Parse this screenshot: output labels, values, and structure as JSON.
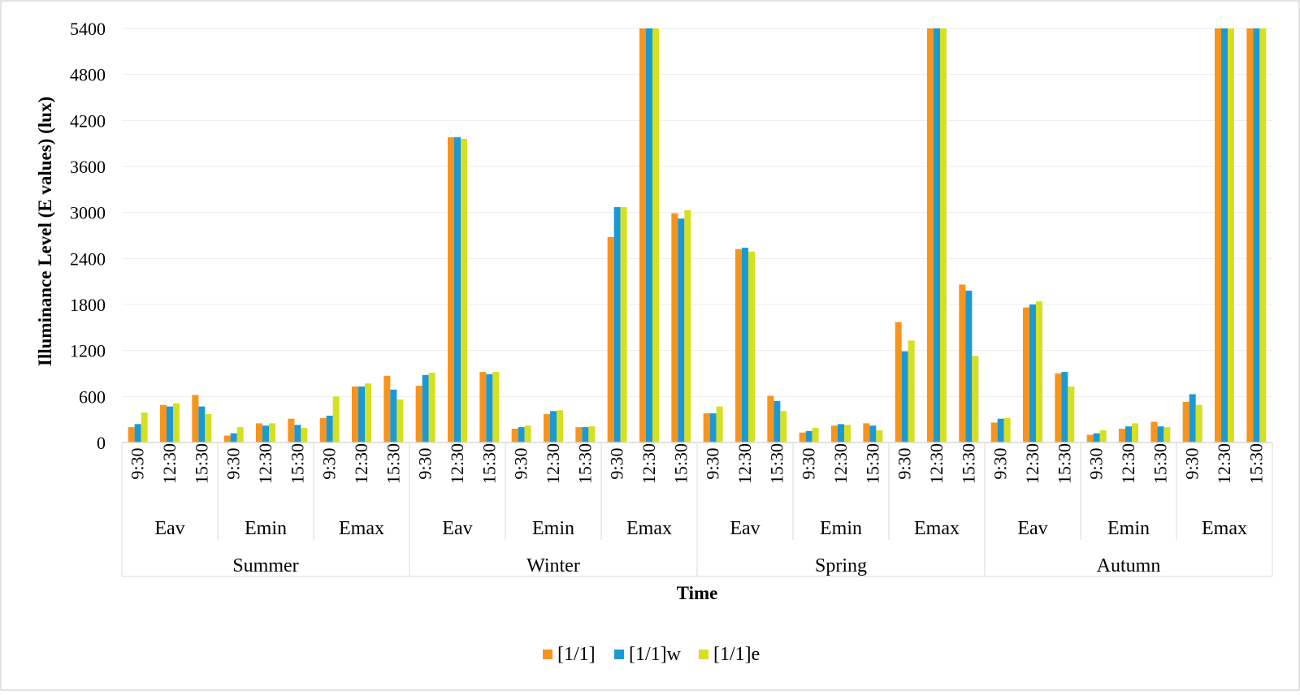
{
  "chart_data": {
    "type": "bar",
    "title": "",
    "xlabel": "Time",
    "ylabel": "Illuminance Level (E values) (lux)",
    "ylim": [
      0,
      5400
    ],
    "yticks": [
      0,
      600,
      1200,
      1800,
      2400,
      3000,
      3600,
      4200,
      4800,
      5400
    ],
    "grid": "horizontal",
    "legend_position": "bottom",
    "seasons": [
      "Summer",
      "Winter",
      "Spring",
      "Autumn"
    ],
    "metrics": [
      "Eav",
      "Emin",
      "Emax"
    ],
    "times": [
      "9:30",
      "12:30",
      "15:30"
    ],
    "categories": [
      "Summer Eav 9:30",
      "Summer Eav 12:30",
      "Summer Eav 15:30",
      "Summer Emin 9:30",
      "Summer Emin 12:30",
      "Summer Emin 15:30",
      "Summer Emax 9:30",
      "Summer Emax 12:30",
      "Summer Emax 15:30",
      "Winter Eav 9:30",
      "Winter Eav 12:30",
      "Winter Eav 15:30",
      "Winter Emin 9:30",
      "Winter Emin 12:30",
      "Winter Emin 15:30",
      "Winter Emax 9:30",
      "Winter Emax 12:30",
      "Winter Emax 15:30",
      "Spring Eav 9:30",
      "Spring Eav 12:30",
      "Spring Eav 15:30",
      "Spring Emin 9:30",
      "Spring Emin 12:30",
      "Spring Emin 15:30",
      "Spring Emax 9:30",
      "Spring Emax 12:30",
      "Spring Emax 15:30",
      "Autumn Eav 9:30",
      "Autumn Eav 12:30",
      "Autumn Eav 15:30",
      "Autumn Emin 9:30",
      "Autumn Emin 12:30",
      "Autumn Emin 15:30",
      "Autumn Emax 9:30",
      "Autumn Emax 12:30",
      "Autumn Emax 15:30"
    ],
    "series": [
      {
        "name": "[1/1]",
        "color": "#F7941D",
        "values": [
          200,
          490,
          620,
          90,
          250,
          310,
          320,
          730,
          870,
          740,
          3980,
          920,
          180,
          370,
          200,
          2680,
          5400,
          2990,
          380,
          2520,
          610,
          130,
          220,
          250,
          1570,
          5400,
          2060,
          260,
          1760,
          900,
          100,
          180,
          270,
          530,
          5400,
          5400
        ]
      },
      {
        "name": "[1/1]w",
        "color": "#1B9AD2",
        "values": [
          240,
          470,
          470,
          120,
          220,
          230,
          350,
          730,
          690,
          880,
          3980,
          890,
          200,
          410,
          200,
          3070,
          5400,
          2920,
          380,
          2540,
          540,
          150,
          240,
          220,
          1190,
          5400,
          1980,
          310,
          1800,
          920,
          120,
          210,
          210,
          630,
          5400,
          5400
        ]
      },
      {
        "name": "[1/1]e",
        "color": "#D7DF23",
        "values": [
          390,
          510,
          370,
          200,
          250,
          190,
          600,
          770,
          560,
          910,
          3960,
          920,
          220,
          420,
          210,
          3070,
          5400,
          3030,
          470,
          2490,
          410,
          190,
          230,
          160,
          1330,
          5400,
          1130,
          320,
          1840,
          730,
          160,
          250,
          200,
          490,
          5400,
          5400
        ]
      }
    ]
  }
}
